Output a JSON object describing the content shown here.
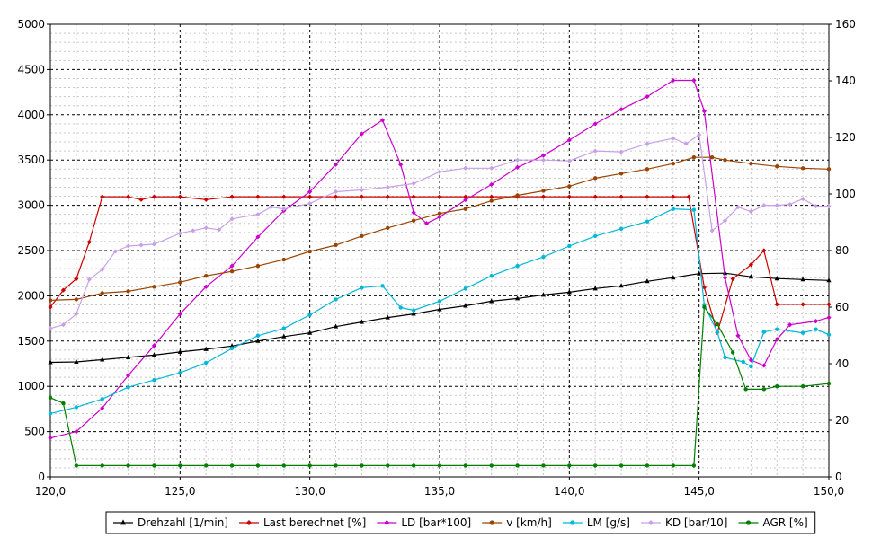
{
  "chart_data": {
    "type": "line",
    "x_ticks": [
      "120,0",
      "125,0",
      "130,0",
      "135,0",
      "140,0",
      "145,0",
      "150,0"
    ],
    "y_left_ticks": [
      "0",
      "500",
      "1000",
      "1500",
      "2000",
      "2500",
      "3000",
      "3500",
      "4000",
      "4500",
      "5000"
    ],
    "y_right_ticks": [
      "0",
      "20",
      "40",
      "60",
      "80",
      "100",
      "120",
      "140",
      "160"
    ],
    "xlim": [
      120,
      150
    ],
    "ylim_left": [
      0,
      5000
    ],
    "ylim_right": [
      0,
      160
    ],
    "grid": true,
    "legend_position": "bottom",
    "series": [
      {
        "name": "Drehzahl [1/min]",
        "axis": "left",
        "color": "#000000",
        "marker": "triangle",
        "points": [
          [
            120.0,
            1265
          ],
          [
            121.0,
            1270
          ],
          [
            122.0,
            1295
          ],
          [
            123.0,
            1320
          ],
          [
            124.0,
            1345
          ],
          [
            125.0,
            1380
          ],
          [
            126.0,
            1410
          ],
          [
            127.0,
            1445
          ],
          [
            128.0,
            1500
          ],
          [
            129.0,
            1550
          ],
          [
            130.0,
            1590
          ],
          [
            131.0,
            1660
          ],
          [
            132.0,
            1710
          ],
          [
            133.0,
            1760
          ],
          [
            134.0,
            1800
          ],
          [
            135.0,
            1850
          ],
          [
            136.0,
            1890
          ],
          [
            137.0,
            1940
          ],
          [
            138.0,
            1970
          ],
          [
            139.0,
            2010
          ],
          [
            140.0,
            2040
          ],
          [
            141.0,
            2080
          ],
          [
            142.0,
            2110
          ],
          [
            143.0,
            2160
          ],
          [
            144.0,
            2200
          ],
          [
            145.0,
            2245
          ],
          [
            146.0,
            2250
          ],
          [
            147.0,
            2210
          ],
          [
            148.0,
            2190
          ],
          [
            149.0,
            2180
          ],
          [
            150.0,
            2170
          ]
        ]
      },
      {
        "name": "Last berechnet [%]",
        "axis": "right",
        "color": "#cc0000",
        "marker": "diamond",
        "points": [
          [
            120.0,
            60
          ],
          [
            120.5,
            66
          ],
          [
            121.0,
            70
          ],
          [
            121.5,
            83
          ],
          [
            122.0,
            99
          ],
          [
            123.0,
            99
          ],
          [
            123.5,
            98
          ],
          [
            124.0,
            99
          ],
          [
            125.0,
            99
          ],
          [
            126.0,
            98
          ],
          [
            127.0,
            99
          ],
          [
            128.0,
            99
          ],
          [
            129.0,
            99
          ],
          [
            130.0,
            99
          ],
          [
            131.0,
            99
          ],
          [
            132.0,
            99
          ],
          [
            133.0,
            99
          ],
          [
            134.0,
            99
          ],
          [
            135.0,
            99
          ],
          [
            136.0,
            99
          ],
          [
            137.0,
            99
          ],
          [
            138.0,
            99
          ],
          [
            139.0,
            99
          ],
          [
            140.0,
            99
          ],
          [
            141.0,
            99
          ],
          [
            142.0,
            99
          ],
          [
            143.0,
            99
          ],
          [
            144.0,
            99
          ],
          [
            144.6,
            99
          ],
          [
            145.2,
            67
          ],
          [
            145.7,
            51
          ],
          [
            146.3,
            70
          ],
          [
            147.0,
            75
          ],
          [
            147.5,
            80
          ],
          [
            148.0,
            61
          ],
          [
            149.0,
            61
          ],
          [
            150.0,
            61
          ]
        ]
      },
      {
        "name": "LD [bar*100]",
        "axis": "left",
        "color": "#cc00cc",
        "marker": "diamond",
        "points": [
          [
            120.0,
            430
          ],
          [
            121.0,
            500
          ],
          [
            122.0,
            760
          ],
          [
            123.0,
            1120
          ],
          [
            124.0,
            1450
          ],
          [
            125.0,
            1800
          ],
          [
            126.0,
            2100
          ],
          [
            127.0,
            2330
          ],
          [
            128.0,
            2650
          ],
          [
            129.0,
            2940
          ],
          [
            130.0,
            3150
          ],
          [
            131.0,
            3450
          ],
          [
            132.0,
            3790
          ],
          [
            132.8,
            3940
          ],
          [
            133.5,
            3450
          ],
          [
            134.0,
            2920
          ],
          [
            134.5,
            2800
          ],
          [
            135.0,
            2870
          ],
          [
            136.0,
            3060
          ],
          [
            137.0,
            3230
          ],
          [
            138.0,
            3420
          ],
          [
            139.0,
            3550
          ],
          [
            140.0,
            3720
          ],
          [
            141.0,
            3900
          ],
          [
            142.0,
            4060
          ],
          [
            143.0,
            4200
          ],
          [
            144.0,
            4380
          ],
          [
            144.8,
            4380
          ],
          [
            145.2,
            4040
          ],
          [
            146.0,
            2200
          ],
          [
            146.5,
            1560
          ],
          [
            147.0,
            1290
          ],
          [
            147.5,
            1230
          ],
          [
            148.0,
            1520
          ],
          [
            148.5,
            1680
          ],
          [
            149.5,
            1720
          ],
          [
            150.0,
            1760
          ]
        ]
      },
      {
        "name": "v [km/h]",
        "axis": "left",
        "color": "#994400",
        "marker": "circle",
        "points": [
          [
            120.0,
            1950
          ],
          [
            121.0,
            1960
          ],
          [
            122.0,
            2030
          ],
          [
            123.0,
            2050
          ],
          [
            124.0,
            2100
          ],
          [
            125.0,
            2150
          ],
          [
            126.0,
            2220
          ],
          [
            127.0,
            2270
          ],
          [
            128.0,
            2330
          ],
          [
            129.0,
            2400
          ],
          [
            130.0,
            2490
          ],
          [
            131.0,
            2560
          ],
          [
            132.0,
            2660
          ],
          [
            133.0,
            2750
          ],
          [
            134.0,
            2830
          ],
          [
            135.0,
            2910
          ],
          [
            136.0,
            2960
          ],
          [
            137.0,
            3050
          ],
          [
            138.0,
            3110
          ],
          [
            139.0,
            3160
          ],
          [
            140.0,
            3210
          ],
          [
            141.0,
            3300
          ],
          [
            142.0,
            3350
          ],
          [
            143.0,
            3400
          ],
          [
            144.0,
            3460
          ],
          [
            144.8,
            3530
          ],
          [
            145.5,
            3530
          ],
          [
            146.0,
            3500
          ],
          [
            147.0,
            3460
          ],
          [
            148.0,
            3430
          ],
          [
            149.0,
            3410
          ],
          [
            150.0,
            3400
          ]
        ]
      },
      {
        "name": "LM [g/s]",
        "axis": "left",
        "color": "#00b8d8",
        "marker": "circle",
        "points": [
          [
            120.0,
            700
          ],
          [
            121.0,
            770
          ],
          [
            122.0,
            860
          ],
          [
            123.0,
            990
          ],
          [
            124.0,
            1070
          ],
          [
            125.0,
            1150
          ],
          [
            126.0,
            1260
          ],
          [
            127.0,
            1420
          ],
          [
            128.0,
            1560
          ],
          [
            129.0,
            1640
          ],
          [
            130.0,
            1790
          ],
          [
            131.0,
            1960
          ],
          [
            132.0,
            2090
          ],
          [
            132.8,
            2110
          ],
          [
            133.5,
            1870
          ],
          [
            134.0,
            1840
          ],
          [
            135.0,
            1940
          ],
          [
            136.0,
            2080
          ],
          [
            137.0,
            2220
          ],
          [
            138.0,
            2330
          ],
          [
            139.0,
            2430
          ],
          [
            140.0,
            2550
          ],
          [
            141.0,
            2660
          ],
          [
            142.0,
            2740
          ],
          [
            143.0,
            2820
          ],
          [
            144.0,
            2960
          ],
          [
            144.8,
            2950
          ],
          [
            145.2,
            1900
          ],
          [
            145.7,
            1600
          ],
          [
            146.0,
            1320
          ],
          [
            146.7,
            1270
          ],
          [
            147.0,
            1220
          ],
          [
            147.5,
            1600
          ],
          [
            148.0,
            1630
          ],
          [
            149.0,
            1590
          ],
          [
            149.5,
            1630
          ],
          [
            150.0,
            1570
          ]
        ]
      },
      {
        "name": "KD [bar/10]",
        "axis": "left",
        "color": "#c8a0e8",
        "marker": "diamond",
        "points": [
          [
            120.0,
            1640
          ],
          [
            120.5,
            1680
          ],
          [
            121.0,
            1800
          ],
          [
            121.5,
            2180
          ],
          [
            122.0,
            2290
          ],
          [
            122.5,
            2490
          ],
          [
            123.0,
            2550
          ],
          [
            123.5,
            2560
          ],
          [
            124.0,
            2570
          ],
          [
            125.0,
            2690
          ],
          [
            125.5,
            2720
          ],
          [
            126.0,
            2750
          ],
          [
            126.5,
            2730
          ],
          [
            127.0,
            2850
          ],
          [
            128.0,
            2900
          ],
          [
            128.5,
            2980
          ],
          [
            129.0,
            2960
          ],
          [
            130.0,
            3020
          ],
          [
            131.0,
            3150
          ],
          [
            132.0,
            3170
          ],
          [
            133.0,
            3200
          ],
          [
            134.0,
            3240
          ],
          [
            135.0,
            3370
          ],
          [
            136.0,
            3410
          ],
          [
            137.0,
            3410
          ],
          [
            138.0,
            3500
          ],
          [
            139.0,
            3500
          ],
          [
            140.0,
            3490
          ],
          [
            141.0,
            3600
          ],
          [
            142.0,
            3590
          ],
          [
            143.0,
            3680
          ],
          [
            144.0,
            3740
          ],
          [
            144.5,
            3680
          ],
          [
            145.0,
            3780
          ],
          [
            145.5,
            2720
          ],
          [
            146.0,
            2830
          ],
          [
            146.5,
            2980
          ],
          [
            147.0,
            2930
          ],
          [
            147.5,
            3000
          ],
          [
            148.0,
            3000
          ],
          [
            148.5,
            3010
          ],
          [
            149.0,
            3070
          ],
          [
            149.5,
            2990
          ],
          [
            150.0,
            2990
          ]
        ]
      },
      {
        "name": "AGR [%]",
        "axis": "right",
        "color": "#007f00",
        "marker": "circle",
        "points": [
          [
            120.0,
            28
          ],
          [
            120.5,
            26
          ],
          [
            121.0,
            4
          ],
          [
            122.0,
            4
          ],
          [
            123.0,
            4
          ],
          [
            124.0,
            4
          ],
          [
            125.0,
            4
          ],
          [
            126.0,
            4
          ],
          [
            127.0,
            4
          ],
          [
            128.0,
            4
          ],
          [
            129.0,
            4
          ],
          [
            130.0,
            4
          ],
          [
            131.0,
            4
          ],
          [
            132.0,
            4
          ],
          [
            133.0,
            4
          ],
          [
            134.0,
            4
          ],
          [
            135.0,
            4
          ],
          [
            136.0,
            4
          ],
          [
            137.0,
            4
          ],
          [
            138.0,
            4
          ],
          [
            139.0,
            4
          ],
          [
            140.0,
            4
          ],
          [
            141.0,
            4
          ],
          [
            142.0,
            4
          ],
          [
            143.0,
            4
          ],
          [
            144.0,
            4
          ],
          [
            144.8,
            4
          ],
          [
            145.2,
            60
          ],
          [
            145.7,
            54
          ],
          [
            146.3,
            44
          ],
          [
            146.8,
            31
          ],
          [
            147.5,
            31
          ],
          [
            148.0,
            32
          ],
          [
            149.0,
            32
          ],
          [
            150.0,
            33
          ]
        ]
      }
    ]
  }
}
